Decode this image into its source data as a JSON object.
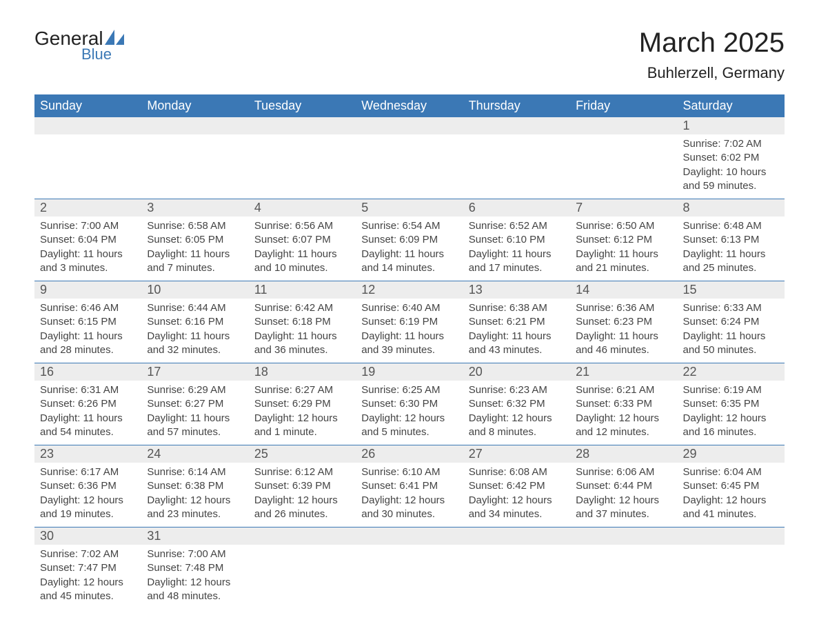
{
  "logo": {
    "text_general": "General",
    "text_blue": "Blue",
    "icon_color": "#3b78b5"
  },
  "title": "March 2025",
  "location": "Buhlerzell, Germany",
  "colors": {
    "header_bg": "#3b78b5",
    "header_text": "#ffffff",
    "daynum_bg": "#ededed",
    "row_border": "#3b78b5",
    "text": "#444444"
  },
  "typography": {
    "title_fontsize": 40,
    "location_fontsize": 22,
    "weekday_fontsize": 18,
    "daynum_fontsize": 18,
    "body_fontsize": 15,
    "font_family": "Arial, Helvetica, sans-serif"
  },
  "weekdays": [
    "Sunday",
    "Monday",
    "Tuesday",
    "Wednesday",
    "Thursday",
    "Friday",
    "Saturday"
  ],
  "weeks": [
    [
      null,
      null,
      null,
      null,
      null,
      null,
      {
        "n": "1",
        "sr": "Sunrise: 7:02 AM",
        "ss": "Sunset: 6:02 PM",
        "dl": "Daylight: 10 hours and 59 minutes."
      }
    ],
    [
      {
        "n": "2",
        "sr": "Sunrise: 7:00 AM",
        "ss": "Sunset: 6:04 PM",
        "dl": "Daylight: 11 hours and 3 minutes."
      },
      {
        "n": "3",
        "sr": "Sunrise: 6:58 AM",
        "ss": "Sunset: 6:05 PM",
        "dl": "Daylight: 11 hours and 7 minutes."
      },
      {
        "n": "4",
        "sr": "Sunrise: 6:56 AM",
        "ss": "Sunset: 6:07 PM",
        "dl": "Daylight: 11 hours and 10 minutes."
      },
      {
        "n": "5",
        "sr": "Sunrise: 6:54 AM",
        "ss": "Sunset: 6:09 PM",
        "dl": "Daylight: 11 hours and 14 minutes."
      },
      {
        "n": "6",
        "sr": "Sunrise: 6:52 AM",
        "ss": "Sunset: 6:10 PM",
        "dl": "Daylight: 11 hours and 17 minutes."
      },
      {
        "n": "7",
        "sr": "Sunrise: 6:50 AM",
        "ss": "Sunset: 6:12 PM",
        "dl": "Daylight: 11 hours and 21 minutes."
      },
      {
        "n": "8",
        "sr": "Sunrise: 6:48 AM",
        "ss": "Sunset: 6:13 PM",
        "dl": "Daylight: 11 hours and 25 minutes."
      }
    ],
    [
      {
        "n": "9",
        "sr": "Sunrise: 6:46 AM",
        "ss": "Sunset: 6:15 PM",
        "dl": "Daylight: 11 hours and 28 minutes."
      },
      {
        "n": "10",
        "sr": "Sunrise: 6:44 AM",
        "ss": "Sunset: 6:16 PM",
        "dl": "Daylight: 11 hours and 32 minutes."
      },
      {
        "n": "11",
        "sr": "Sunrise: 6:42 AM",
        "ss": "Sunset: 6:18 PM",
        "dl": "Daylight: 11 hours and 36 minutes."
      },
      {
        "n": "12",
        "sr": "Sunrise: 6:40 AM",
        "ss": "Sunset: 6:19 PM",
        "dl": "Daylight: 11 hours and 39 minutes."
      },
      {
        "n": "13",
        "sr": "Sunrise: 6:38 AM",
        "ss": "Sunset: 6:21 PM",
        "dl": "Daylight: 11 hours and 43 minutes."
      },
      {
        "n": "14",
        "sr": "Sunrise: 6:36 AM",
        "ss": "Sunset: 6:23 PM",
        "dl": "Daylight: 11 hours and 46 minutes."
      },
      {
        "n": "15",
        "sr": "Sunrise: 6:33 AM",
        "ss": "Sunset: 6:24 PM",
        "dl": "Daylight: 11 hours and 50 minutes."
      }
    ],
    [
      {
        "n": "16",
        "sr": "Sunrise: 6:31 AM",
        "ss": "Sunset: 6:26 PM",
        "dl": "Daylight: 11 hours and 54 minutes."
      },
      {
        "n": "17",
        "sr": "Sunrise: 6:29 AM",
        "ss": "Sunset: 6:27 PM",
        "dl": "Daylight: 11 hours and 57 minutes."
      },
      {
        "n": "18",
        "sr": "Sunrise: 6:27 AM",
        "ss": "Sunset: 6:29 PM",
        "dl": "Daylight: 12 hours and 1 minute."
      },
      {
        "n": "19",
        "sr": "Sunrise: 6:25 AM",
        "ss": "Sunset: 6:30 PM",
        "dl": "Daylight: 12 hours and 5 minutes."
      },
      {
        "n": "20",
        "sr": "Sunrise: 6:23 AM",
        "ss": "Sunset: 6:32 PM",
        "dl": "Daylight: 12 hours and 8 minutes."
      },
      {
        "n": "21",
        "sr": "Sunrise: 6:21 AM",
        "ss": "Sunset: 6:33 PM",
        "dl": "Daylight: 12 hours and 12 minutes."
      },
      {
        "n": "22",
        "sr": "Sunrise: 6:19 AM",
        "ss": "Sunset: 6:35 PM",
        "dl": "Daylight: 12 hours and 16 minutes."
      }
    ],
    [
      {
        "n": "23",
        "sr": "Sunrise: 6:17 AM",
        "ss": "Sunset: 6:36 PM",
        "dl": "Daylight: 12 hours and 19 minutes."
      },
      {
        "n": "24",
        "sr": "Sunrise: 6:14 AM",
        "ss": "Sunset: 6:38 PM",
        "dl": "Daylight: 12 hours and 23 minutes."
      },
      {
        "n": "25",
        "sr": "Sunrise: 6:12 AM",
        "ss": "Sunset: 6:39 PM",
        "dl": "Daylight: 12 hours and 26 minutes."
      },
      {
        "n": "26",
        "sr": "Sunrise: 6:10 AM",
        "ss": "Sunset: 6:41 PM",
        "dl": "Daylight: 12 hours and 30 minutes."
      },
      {
        "n": "27",
        "sr": "Sunrise: 6:08 AM",
        "ss": "Sunset: 6:42 PM",
        "dl": "Daylight: 12 hours and 34 minutes."
      },
      {
        "n": "28",
        "sr": "Sunrise: 6:06 AM",
        "ss": "Sunset: 6:44 PM",
        "dl": "Daylight: 12 hours and 37 minutes."
      },
      {
        "n": "29",
        "sr": "Sunrise: 6:04 AM",
        "ss": "Sunset: 6:45 PM",
        "dl": "Daylight: 12 hours and 41 minutes."
      }
    ],
    [
      {
        "n": "30",
        "sr": "Sunrise: 7:02 AM",
        "ss": "Sunset: 7:47 PM",
        "dl": "Daylight: 12 hours and 45 minutes."
      },
      {
        "n": "31",
        "sr": "Sunrise: 7:00 AM",
        "ss": "Sunset: 7:48 PM",
        "dl": "Daylight: 12 hours and 48 minutes."
      },
      null,
      null,
      null,
      null,
      null
    ]
  ]
}
